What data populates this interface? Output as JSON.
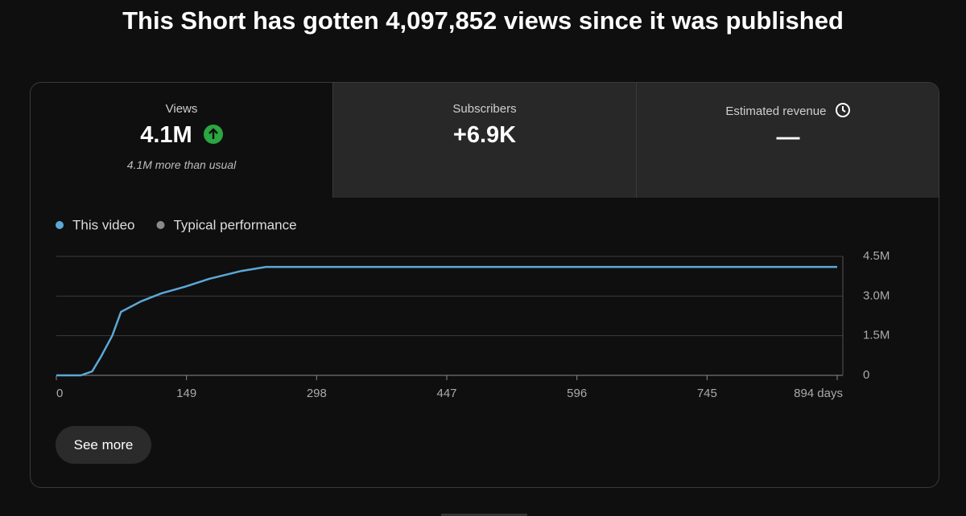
{
  "header": {
    "title": "This Short has gotten 4,097,852 views since it was published"
  },
  "cards": [
    {
      "label": "Views",
      "value": "4.1M",
      "note": "4.1M more than usual"
    },
    {
      "label": "Subscribers",
      "value": "+6.9K"
    },
    {
      "label": "Estimated revenue",
      "value": "—"
    }
  ],
  "button": "See more",
  "chart_data": {
    "type": "line",
    "x": [
      0,
      28,
      41,
      51,
      64,
      74,
      97,
      120,
      147,
      175,
      212,
      240,
      894
    ],
    "series": [
      {
        "name": "This video",
        "color": "#5ba8d8",
        "values": [
          0,
          0,
          150000,
          700000,
          1500000,
          2400000,
          2800000,
          3100000,
          3350000,
          3650000,
          3950000,
          4100000,
          4100000
        ]
      },
      {
        "name": "Typical performance",
        "color": "#8a8a8a",
        "values": [
          null,
          null,
          null,
          null,
          null,
          null,
          null,
          null,
          null,
          null,
          null,
          null,
          null
        ]
      }
    ],
    "xlim": [
      0,
      894
    ],
    "xticks": [
      0,
      149,
      298,
      447,
      596,
      745,
      {
        "value": 894,
        "label": "894 days"
      }
    ],
    "ylim": [
      0,
      4500000
    ],
    "yticks": [
      0,
      {
        "value": 1500000,
        "label": "1.5M"
      },
      {
        "value": 3000000,
        "label": "3.0M"
      },
      {
        "value": 4500000,
        "label": "4.5M"
      }
    ],
    "grid": true
  }
}
